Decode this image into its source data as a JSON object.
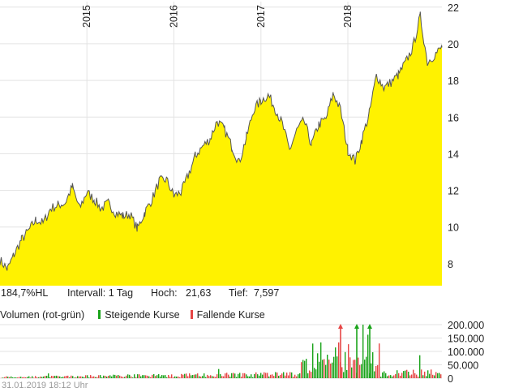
{
  "stats": {
    "hl": "184,7%HL",
    "interval": "Intervall: 1 Tag",
    "high_label": "Hoch:",
    "high_value": "21,63",
    "low_label": "Tief:",
    "low_value": "7,597"
  },
  "volume_legend": {
    "label": "Volumen (rot-grün)",
    "rising": "Steigende Kurse",
    "falling": "Fallende Kurse"
  },
  "footer": "31.01.2019 18:12 Uhr",
  "colors": {
    "area_fill": "#fff200",
    "price_line": "#555555",
    "grid": "#e3e3e3",
    "rising": "#1aa31a",
    "falling": "#e64545"
  },
  "chart_data": [
    {
      "type": "area",
      "x_start": "2014-01-01",
      "x_end": "2019-01-31",
      "x_ticks": [
        {
          "date": "2015-01-01",
          "label": "2015"
        },
        {
          "date": "2016-01-01",
          "label": "2016"
        },
        {
          "date": "2017-01-01",
          "label": "2017"
        },
        {
          "date": "2018-01-01",
          "label": "2018"
        }
      ],
      "ylim": [
        6.8,
        22.3
      ],
      "y_ticks": [
        8,
        10,
        12,
        14,
        16,
        18,
        20,
        22
      ],
      "high": 21.63,
      "low": 7.597,
      "grid": true,
      "series": [
        {
          "x": [
            "2014-01-01",
            "2014-02-01",
            "2014-03-01",
            "2014-04-01",
            "2014-05-01",
            "2014-06-01",
            "2014-07-01",
            "2014-08-01",
            "2014-09-01",
            "2014-10-01",
            "2014-11-01",
            "2014-12-01",
            "2015-01-01",
            "2015-02-01",
            "2015-03-01",
            "2015-04-01",
            "2015-05-01",
            "2015-06-01",
            "2015-07-01",
            "2015-08-01",
            "2015-09-01",
            "2015-10-01",
            "2015-11-01",
            "2015-12-01",
            "2016-01-01",
            "2016-02-01",
            "2016-03-01",
            "2016-04-01",
            "2016-05-01",
            "2016-06-01",
            "2016-07-01",
            "2016-08-01",
            "2016-09-01",
            "2016-10-01",
            "2016-11-01",
            "2016-12-01",
            "2017-01-01",
            "2017-02-01",
            "2017-03-01",
            "2017-04-01",
            "2017-05-01",
            "2017-06-01",
            "2017-07-01",
            "2017-08-01",
            "2017-09-01",
            "2017-10-01",
            "2017-11-01",
            "2017-12-01",
            "2018-01-01",
            "2018-02-01",
            "2018-03-01",
            "2018-04-01",
            "2018-05-01",
            "2018-06-01",
            "2018-07-01",
            "2018-08-01",
            "2018-09-01",
            "2018-10-01",
            "2018-11-01",
            "2018-12-01",
            "2019-01-31"
          ],
          "y": [
            8.2,
            7.7,
            8.5,
            9.3,
            9.8,
            10.4,
            10.2,
            11.0,
            11.2,
            11.3,
            12.2,
            11.0,
            11.9,
            11.5,
            11.0,
            11.3,
            10.8,
            10.6,
            10.7,
            9.9,
            10.8,
            11.5,
            12.5,
            12.6,
            11.7,
            11.9,
            12.8,
            13.9,
            14.4,
            14.8,
            15.8,
            15.3,
            14.4,
            13.5,
            14.9,
            16.4,
            16.9,
            17.2,
            16.5,
            15.6,
            14.2,
            15.3,
            15.8,
            14.5,
            15.6,
            15.9,
            17.3,
            16.4,
            14.2,
            13.6,
            14.8,
            16.2,
            18.3,
            17.6,
            17.9,
            18.3,
            19.0,
            19.8,
            21.5,
            19.0,
            19.8
          ]
        }
      ]
    },
    {
      "type": "bar",
      "title": "Volumen (rot-grün)",
      "ylim": [
        0,
        200000
      ],
      "y_ticks": [
        "0",
        "50.000",
        "100.000",
        "150.000",
        "200.000"
      ],
      "series": [
        {
          "name": "Steigende Kurse",
          "color": "#1aa31a"
        },
        {
          "name": "Fallende Kurse",
          "color": "#e64545"
        }
      ]
    }
  ]
}
